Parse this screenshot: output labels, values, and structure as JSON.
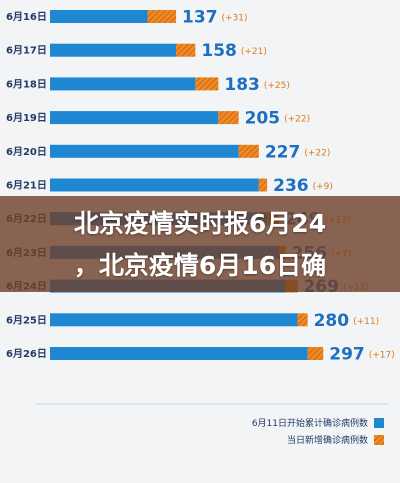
{
  "chart_data": {
    "type": "bar",
    "orientation": "horizontal",
    "stacked": true,
    "categories": [
      "6月16日",
      "6月17日",
      "6月18日",
      "6月19日",
      "6月20日",
      "6月21日",
      "6月22日",
      "6月23日",
      "6月24日",
      "6月25日",
      "6月26日"
    ],
    "totals": [
      137,
      158,
      183,
      205,
      227,
      236,
      249,
      256,
      269,
      280,
      297
    ],
    "increments": [
      "(+31)",
      "(+21)",
      "(+25)",
      "(+22)",
      "(+22)",
      "(+9)",
      "(+13)",
      "(+7)",
      "(+13)",
      "(+11)",
      "(+17)"
    ],
    "series": [
      {
        "name": "6月11日开始累计确诊病例数",
        "values": [
          106,
          137,
          158,
          183,
          205,
          227,
          236,
          249,
          256,
          269,
          280
        ]
      },
      {
        "name": "当日新增确诊病例数",
        "values": [
          31,
          21,
          25,
          22,
          22,
          9,
          13,
          7,
          13,
          11,
          17
        ]
      }
    ],
    "xlim": [
      0,
      320
    ],
    "grid": false,
    "legend": "bottom-right"
  },
  "colors": {
    "cumulative": "#1f86d1",
    "new": "#f08a24",
    "total_text": "#1f6fc0",
    "increment_text": "#e07a1a",
    "date_text": "#223a66"
  },
  "banner": {
    "line1": "北京疫情实时报6月24",
    "line2": "，北京疫情6月16日确"
  }
}
